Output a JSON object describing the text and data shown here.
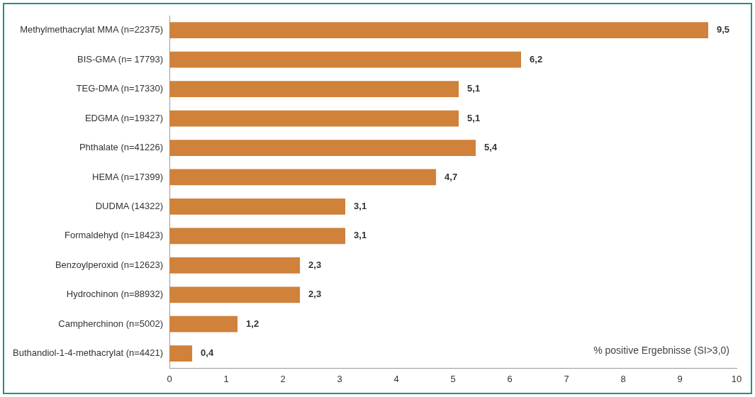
{
  "chart_data": {
    "type": "bar",
    "orientation": "horizontal",
    "categories": [
      "Methylmethacrylat MMA (n=22375)",
      "BIS-GMA (n= 17793)",
      "TEG-DMA (n=17330)",
      "EDGMA (n=19327)",
      "Phthalate (n=41226)",
      "HEMA (n=17399)",
      "DUDMA (14322)",
      "Formaldehyd (n=18423)",
      "Benzoylperoxid (n=12623)",
      "Hydrochinon (n=88932)",
      "Campherchinon (n=5002)",
      "Buthandiol-1-4-methacrylat (n=4421)"
    ],
    "values": [
      9.5,
      6.2,
      5.1,
      5.1,
      5.4,
      4.7,
      3.1,
      3.1,
      2.3,
      2.3,
      1.2,
      0.4
    ],
    "value_labels": [
      "9,5",
      "6,2",
      "5,1",
      "5,1",
      "5,4",
      "4,7",
      "3,1",
      "3,1",
      "2,3",
      "2,3",
      "1,2",
      "0,4"
    ],
    "color": "#d0813a",
    "xlim": [
      0,
      10
    ],
    "xticks": [
      0,
      1,
      2,
      3,
      4,
      5,
      6,
      7,
      8,
      9,
      10
    ],
    "grid": false,
    "legend": false,
    "annotations": [
      "% positive Ergebnisse (SI>3,0)"
    ]
  }
}
